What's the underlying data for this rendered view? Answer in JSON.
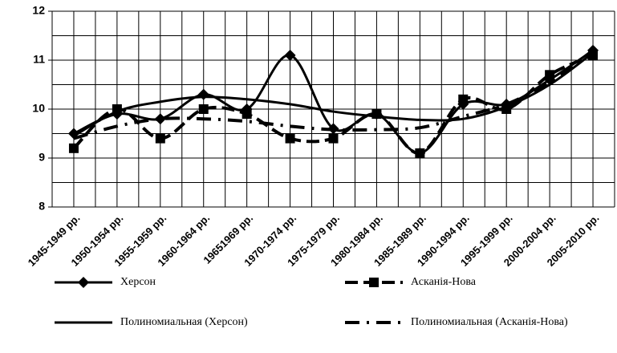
{
  "chart_data": {
    "type": "line",
    "categories": [
      "1945-1949 рр.",
      "1950-1954 рр.",
      "1955-1959 рр.",
      "1960-1964 рр.",
      "19651969 рр.",
      "1970-1974 рр.",
      "1975-1979 рр.",
      "1980-1984 рр.",
      "1985-1989 рр.",
      "1990-1994 рр.",
      "1995-1999 рр.",
      "2000-2004 рр.",
      "2005-2010 рр."
    ],
    "series": [
      {
        "name": "Херсон",
        "color": "#000000",
        "marker": "diamond",
        "dash": "solid",
        "width": 3,
        "values": [
          9.5,
          9.9,
          9.8,
          10.3,
          10.0,
          11.1,
          9.6,
          9.9,
          9.1,
          10.1,
          10.1,
          10.6,
          11.2
        ]
      },
      {
        "name": "Асканія-Нова",
        "color": "#000000",
        "marker": "square",
        "dash": "dashed",
        "width": 4,
        "values": [
          9.2,
          10.0,
          9.4,
          10.0,
          9.9,
          9.4,
          9.4,
          9.9,
          9.1,
          10.2,
          10.0,
          10.7,
          11.1
        ]
      },
      {
        "name": "Полиномиальная (Херсон)",
        "color": "#000000",
        "marker": "none",
        "dash": "solid",
        "width": 3,
        "values": [
          9.45,
          9.95,
          10.15,
          10.25,
          10.2,
          10.1,
          9.95,
          9.85,
          9.78,
          9.8,
          10.05,
          10.5,
          11.15
        ]
      },
      {
        "name": "Полиномиальная (Асканія-Нова)",
        "color": "#000000",
        "marker": "none",
        "dash": "dashdot",
        "width": 4,
        "values": [
          9.4,
          9.65,
          9.8,
          9.8,
          9.75,
          9.65,
          9.58,
          9.58,
          9.62,
          9.85,
          10.1,
          10.55,
          11.2
        ]
      }
    ],
    "ylim": [
      8,
      12
    ],
    "yticks": [
      8,
      9,
      10,
      11,
      12
    ],
    "yminor": [
      8.5,
      9.5,
      10.5,
      11.5
    ],
    "grid": true,
    "smooth": true,
    "legend": "bottom"
  }
}
